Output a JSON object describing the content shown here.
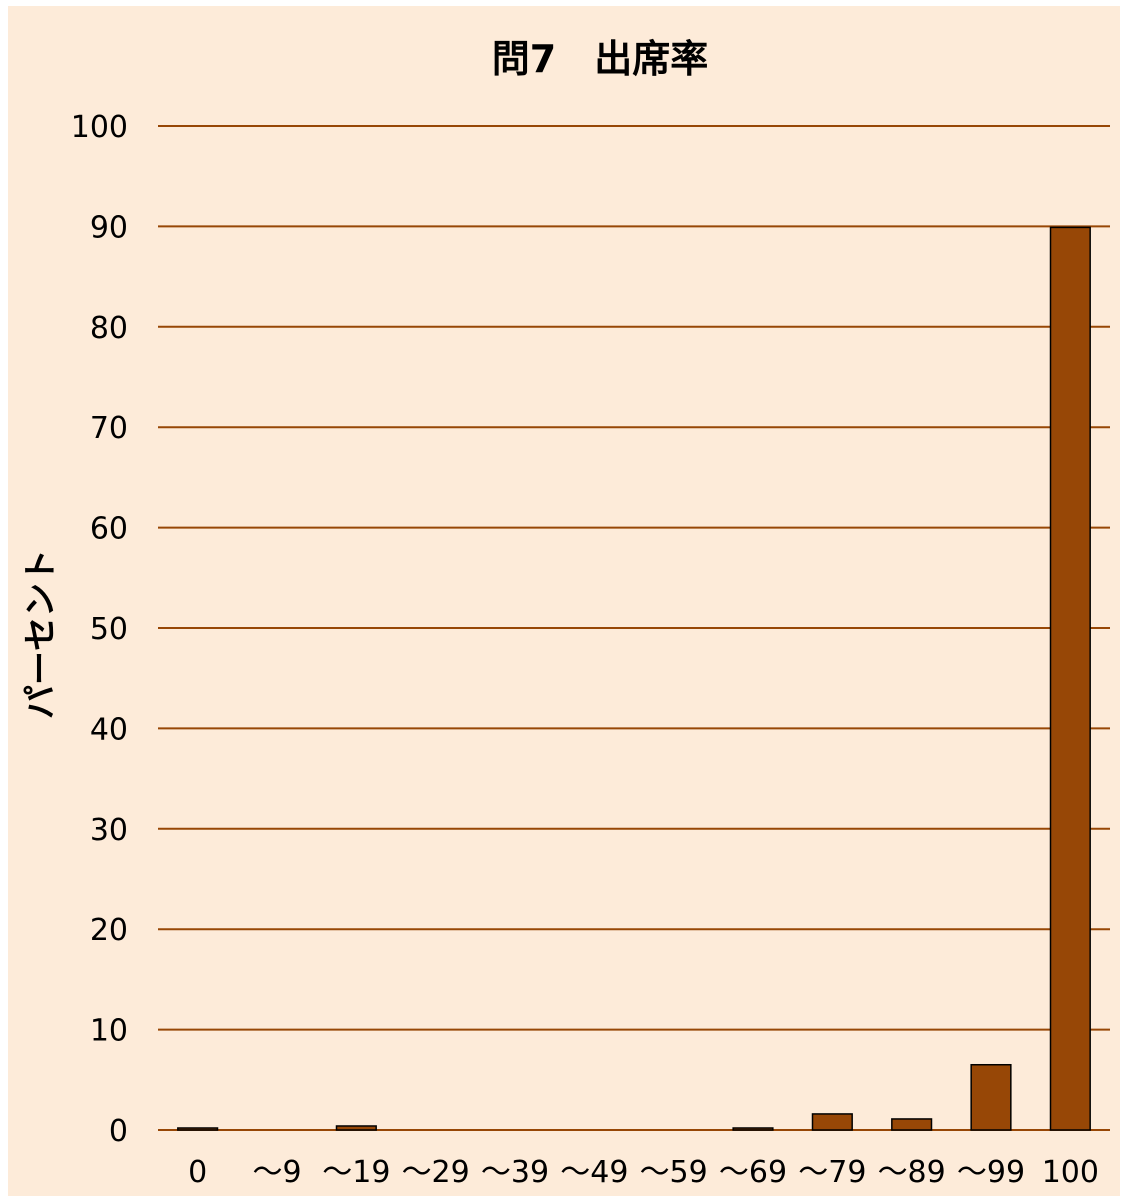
{
  "chart_data": {
    "type": "bar",
    "title": "問7　出席率",
    "ylabel": "パーセント",
    "xlabel": "",
    "ylim": [
      0,
      100
    ],
    "yticks": [
      0,
      10,
      20,
      30,
      40,
      50,
      60,
      70,
      80,
      90,
      100
    ],
    "categories": [
      "0",
      "〜9",
      "〜19",
      "〜29",
      "〜39",
      "〜49",
      "〜59",
      "〜69",
      "〜79",
      "〜89",
      "〜99",
      "100"
    ],
    "values": [
      0.2,
      0,
      0.4,
      0,
      0,
      0,
      0,
      0.2,
      1.6,
      1.1,
      6.5,
      89.9
    ],
    "grid": true,
    "colors": {
      "background": "#fdebd9",
      "bar": "#974706",
      "grid": "#974706",
      "bar_outline": "#000000"
    }
  }
}
